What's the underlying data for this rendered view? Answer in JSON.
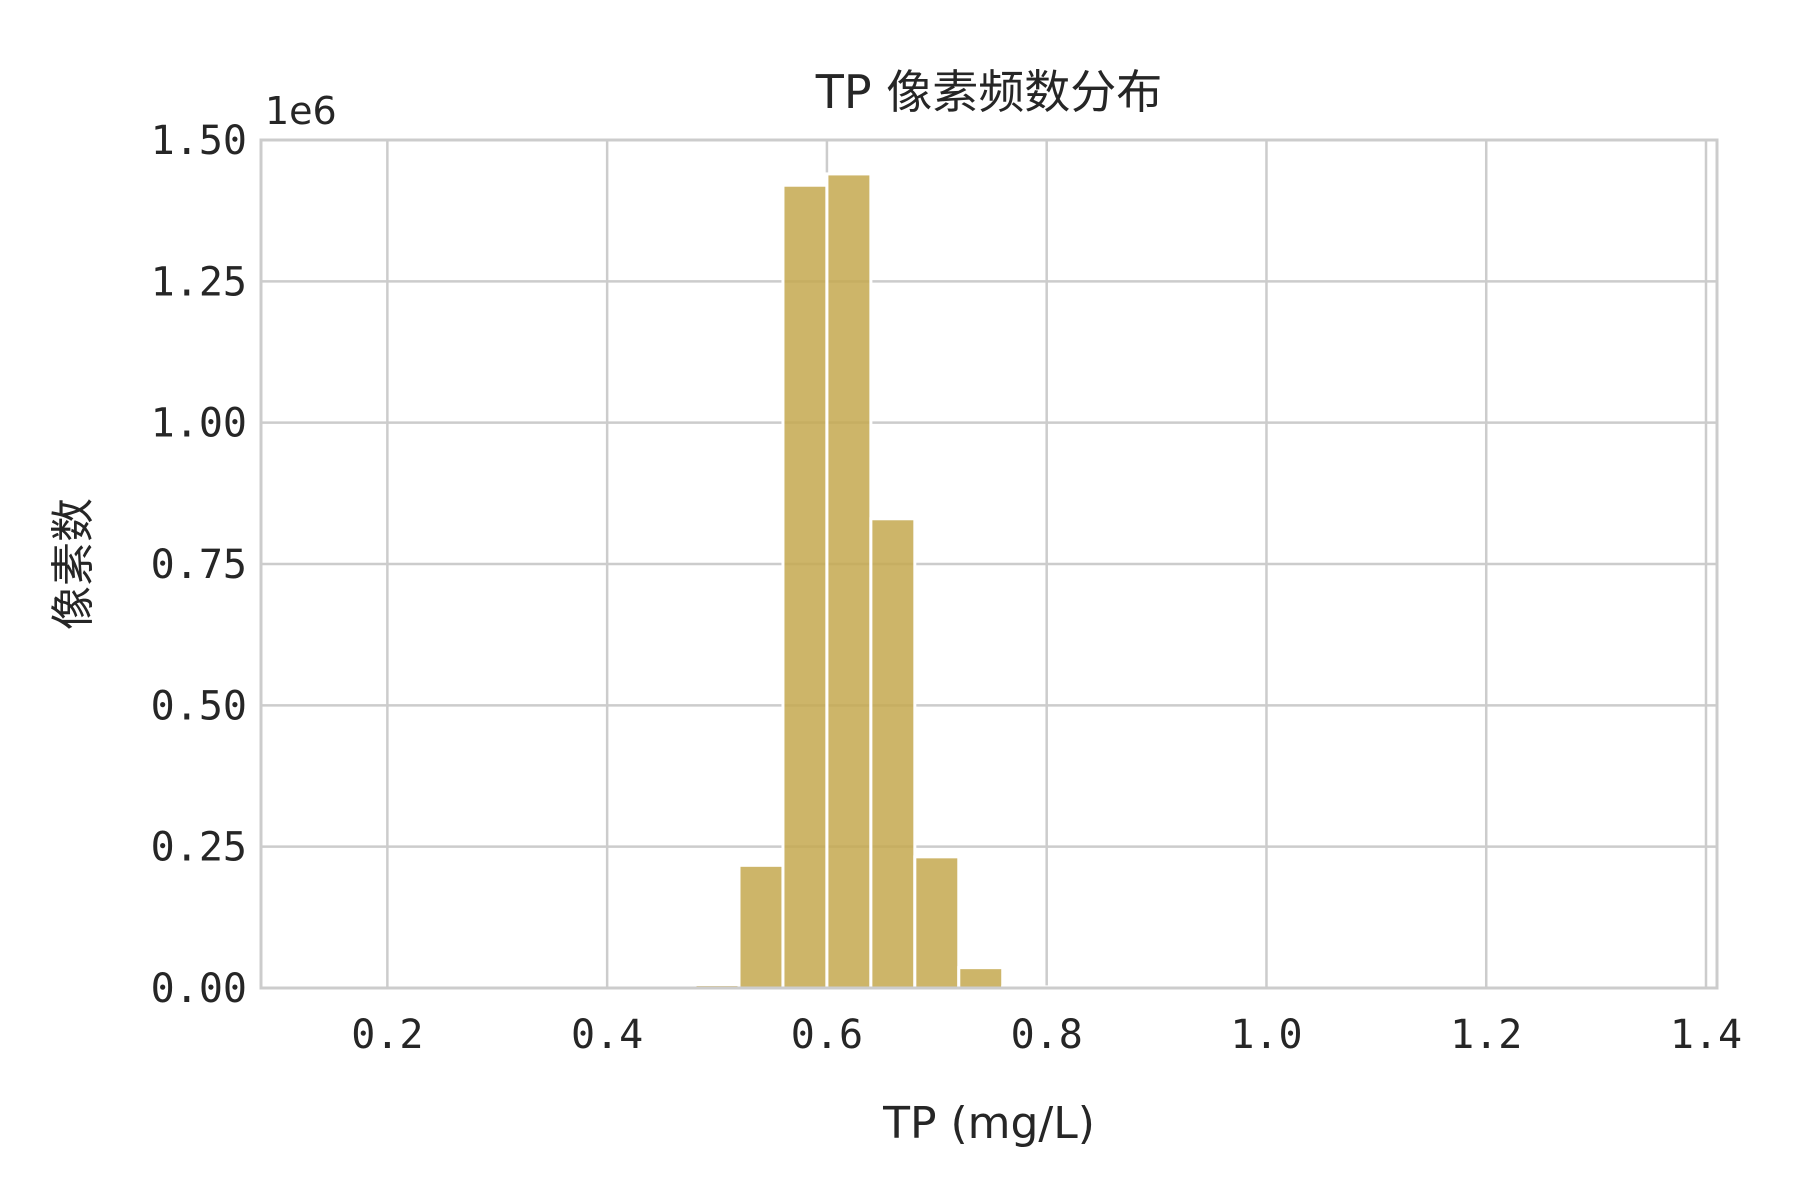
{
  "chart_data": {
    "type": "bar",
    "title": "TP 像素频数分布",
    "xlabel": "TP (mg/L)",
    "ylabel": "像素数",
    "y_offset_label": "1e6",
    "xlim": [
      0.085,
      1.41
    ],
    "ylim": [
      0,
      1.5
    ],
    "x_ticks": [
      0.2,
      0.4,
      0.6,
      0.8,
      1.0,
      1.2,
      1.4
    ],
    "x_tick_labels": [
      "0.2",
      "0.4",
      "0.6",
      "0.8",
      "1.0",
      "1.2",
      "1.4"
    ],
    "y_ticks": [
      0,
      0.25,
      0.5,
      0.75,
      1.0,
      1.25,
      1.5
    ],
    "y_tick_labels": [
      "0.00",
      "0.25",
      "0.50",
      "0.75",
      "1.00",
      "1.25",
      "1.50"
    ],
    "grid": true,
    "bar_color": "#c4a84f",
    "bins": [
      {
        "x0": 0.44,
        "x1": 0.48,
        "value": 0.001
      },
      {
        "x0": 0.48,
        "x1": 0.52,
        "value": 0.006
      },
      {
        "x0": 0.52,
        "x1": 0.56,
        "value": 0.217
      },
      {
        "x0": 0.56,
        "x1": 0.6,
        "value": 1.42
      },
      {
        "x0": 0.6,
        "x1": 0.64,
        "value": 1.44
      },
      {
        "x0": 0.64,
        "x1": 0.68,
        "value": 0.83
      },
      {
        "x0": 0.68,
        "x1": 0.72,
        "value": 0.232
      },
      {
        "x0": 0.72,
        "x1": 0.76,
        "value": 0.036
      },
      {
        "x0": 0.76,
        "x1": 0.8,
        "value": 0.002
      }
    ]
  }
}
